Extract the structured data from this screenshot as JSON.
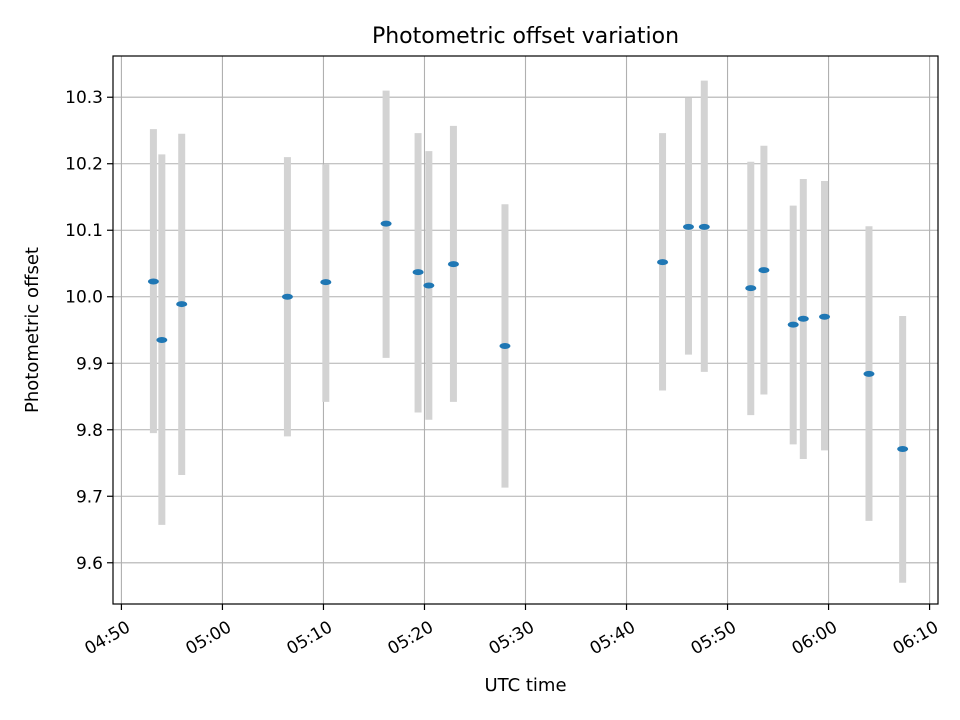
{
  "chart_data": {
    "type": "scatter",
    "title": "Photometric offset variation",
    "xlabel": "UTC time",
    "ylabel": "Photometric offset",
    "x_axis_type": "time",
    "xlim": [
      "04:49:10",
      "06:10:50"
    ],
    "ylim": [
      9.538,
      10.362
    ],
    "x_ticks": [
      "04:50",
      "05:00",
      "05:10",
      "05:20",
      "05:30",
      "05:40",
      "05:50",
      "06:00",
      "06:10"
    ],
    "x_tick_rotation": "30",
    "y_ticks": [
      "9.6",
      "9.7",
      "9.8",
      "9.9",
      "10.0",
      "10.1",
      "10.2",
      "10.3"
    ],
    "grid": true,
    "marker_color": "#1f77b4",
    "errorbar_color": "#d3d3d3",
    "points": [
      {
        "x": "04:53:10",
        "y": 10.023,
        "low": 9.795,
        "high": 10.252
      },
      {
        "x": "04:54:00",
        "y": 9.935,
        "low": 9.657,
        "high": 10.214
      },
      {
        "x": "04:55:58",
        "y": 9.989,
        "low": 9.732,
        "high": 10.245
      },
      {
        "x": "05:06:26",
        "y": 10.0,
        "low": 9.79,
        "high": 10.21
      },
      {
        "x": "05:10:14",
        "y": 10.022,
        "low": 9.842,
        "high": 10.199
      },
      {
        "x": "05:16:12",
        "y": 10.11,
        "low": 9.908,
        "high": 10.31
      },
      {
        "x": "05:19:22",
        "y": 10.037,
        "low": 9.826,
        "high": 10.246
      },
      {
        "x": "05:20:26",
        "y": 10.017,
        "low": 9.815,
        "high": 10.219
      },
      {
        "x": "05:22:52",
        "y": 10.049,
        "low": 9.842,
        "high": 10.257
      },
      {
        "x": "05:27:58",
        "y": 9.926,
        "low": 9.713,
        "high": 10.139
      },
      {
        "x": "05:43:34",
        "y": 10.052,
        "low": 9.859,
        "high": 10.246
      },
      {
        "x": "05:46:08",
        "y": 10.105,
        "low": 9.913,
        "high": 10.299
      },
      {
        "x": "05:47:42",
        "y": 10.105,
        "low": 9.887,
        "high": 10.325
      },
      {
        "x": "05:52:18",
        "y": 10.013,
        "low": 9.822,
        "high": 10.203
      },
      {
        "x": "05:53:36",
        "y": 10.04,
        "low": 9.853,
        "high": 10.227
      },
      {
        "x": "05:56:30",
        "y": 9.958,
        "low": 9.778,
        "high": 10.137
      },
      {
        "x": "05:57:30",
        "y": 9.967,
        "low": 9.756,
        "high": 10.177
      },
      {
        "x": "05:59:36",
        "y": 9.97,
        "low": 9.769,
        "high": 10.174
      },
      {
        "x": "06:04:00",
        "y": 9.884,
        "low": 9.663,
        "high": 10.106
      },
      {
        "x": "06:07:20",
        "y": 9.771,
        "low": 9.57,
        "high": 9.971
      }
    ]
  }
}
